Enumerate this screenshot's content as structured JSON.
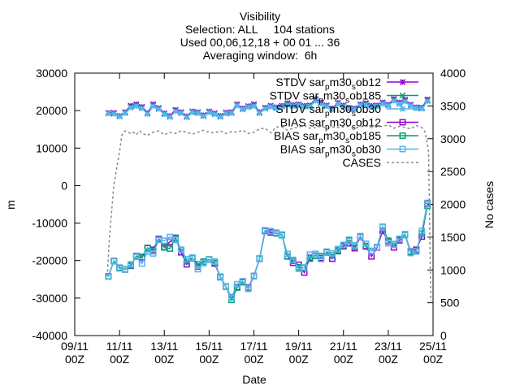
{
  "chart_data": {
    "type": "line",
    "title_lines": [
      "Visibility",
      "Selection: ALL     104 stations",
      "Used 00,06,12,18 + 00 01 ... 36",
      "Averaging window:  6h"
    ],
    "xlabel": "Date",
    "ylabel": "m",
    "y2label": "No cases",
    "xlim": [
      0,
      16
    ],
    "ylim": [
      -40000,
      30000
    ],
    "y2lim": [
      0,
      4000
    ],
    "x_ticks": [
      {
        "v": 0,
        "l1": "09/11",
        "l2": "00Z"
      },
      {
        "v": 2,
        "l1": "11/11",
        "l2": "00Z"
      },
      {
        "v": 4,
        "l1": "13/11",
        "l2": "00Z"
      },
      {
        "v": 6,
        "l1": "15/11",
        "l2": "00Z"
      },
      {
        "v": 8,
        "l1": "17/11",
        "l2": "00Z"
      },
      {
        "v": 10,
        "l1": "19/11",
        "l2": "00Z"
      },
      {
        "v": 12,
        "l1": "21/11",
        "l2": "00Z"
      },
      {
        "v": 14,
        "l1": "23/11",
        "l2": "00Z"
      },
      {
        "v": 16,
        "l1": "25/11",
        "l2": "00Z"
      }
    ],
    "y_ticks": [
      -40000,
      -30000,
      -20000,
      -10000,
      0,
      10000,
      20000,
      30000
    ],
    "y2_ticks": [
      0,
      500,
      1000,
      1500,
      2000,
      2500,
      3000,
      3500,
      4000
    ],
    "x": [
      1.5,
      1.75,
      2.0,
      2.25,
      2.5,
      2.75,
      3.0,
      3.25,
      3.5,
      3.75,
      4.0,
      4.25,
      4.5,
      4.75,
      5.0,
      5.25,
      5.5,
      5.75,
      6.0,
      6.25,
      6.5,
      6.75,
      7.0,
      7.25,
      7.5,
      7.75,
      8.0,
      8.25,
      8.5,
      8.75,
      9.0,
      9.25,
      9.5,
      9.75,
      10.0,
      10.25,
      10.5,
      10.75,
      11.0,
      11.25,
      11.5,
      11.75,
      12.0,
      12.25,
      12.5,
      12.75,
      13.0,
      13.25,
      13.5,
      13.75,
      14.0,
      14.25,
      14.5,
      14.75,
      15.0,
      15.25,
      15.5,
      15.75
    ],
    "series": [
      {
        "name": "STDV sar_{p}m30_{s}ob12",
        "legend_main": "STDV sar",
        "legend_sub1": "p",
        "legend_mid": "m30",
        "legend_sub2": "s",
        "legend_tail": "ob12",
        "axis": "y",
        "color": "#9400d3",
        "marker": "star",
        "values": [
          19400,
          19400,
          18600,
          19600,
          21300,
          21700,
          21000,
          19400,
          21700,
          20700,
          19300,
          18600,
          20200,
          19600,
          18500,
          19800,
          19600,
          18800,
          19800,
          19300,
          18600,
          19500,
          19600,
          21700,
          20600,
          21200,
          21700,
          19600,
          20800,
          21300,
          20900,
          21300,
          22000,
          21500,
          21700,
          21300,
          21400,
          23100,
          22200,
          21400,
          20600,
          22100,
          21400,
          20700,
          20600,
          21700,
          22000,
          21300,
          21400,
          22200,
          21600,
          23100,
          22200,
          22900,
          21600,
          20900,
          20800,
          23000
        ]
      },
      {
        "name": "STDV sar_{p}m30_{s}ob185",
        "legend_main": "STDV sar",
        "legend_sub1": "p",
        "legend_mid": "m30",
        "legend_sub2": "s",
        "legend_tail": "ob185",
        "axis": "y",
        "color": "#009e73",
        "marker": "cross",
        "values": [
          19300,
          19200,
          18500,
          19400,
          21000,
          21400,
          20700,
          19200,
          21400,
          20500,
          19100,
          18400,
          19900,
          19400,
          18300,
          19600,
          19400,
          18600,
          19600,
          19100,
          18400,
          19300,
          19400,
          21500,
          20400,
          21000,
          21400,
          19400,
          20600,
          21100,
          20700,
          21100,
          21700,
          21300,
          21500,
          21100,
          21200,
          22800,
          22000,
          21200,
          20400,
          21900,
          21200,
          20500,
          20400,
          21500,
          21700,
          21100,
          21200,
          22000,
          21400,
          22800,
          22000,
          22600,
          21400,
          20700,
          20600,
          22700
        ]
      },
      {
        "name": "STDV sar_{p}m30_{s}ob30",
        "legend_main": "STDV sar",
        "legend_sub1": "p",
        "legend_mid": "m30",
        "legend_sub2": "s",
        "legend_tail": "ob30",
        "axis": "y",
        "color": "#56b4e9",
        "marker": "asterisk",
        "values": [
          19200,
          19100,
          18400,
          19300,
          20800,
          21200,
          20600,
          19100,
          21200,
          20400,
          19000,
          18300,
          19800,
          19300,
          18200,
          19500,
          19300,
          18500,
          19500,
          19000,
          18300,
          19200,
          19300,
          21300,
          20300,
          20900,
          21200,
          19300,
          20500,
          21000,
          20600,
          21000,
          21500,
          21200,
          21400,
          21000,
          21100,
          22600,
          21800,
          21100,
          20300,
          21800,
          21100,
          20400,
          20300,
          21400,
          21500,
          21000,
          21100,
          21800,
          21300,
          22600,
          21800,
          22400,
          21300,
          20600,
          20500,
          22500
        ]
      },
      {
        "name": "BIAS sar_{p}m30_{s}ob12",
        "legend_main": "BIAS sar",
        "legend_sub1": "p",
        "legend_mid": "m30",
        "legend_sub2": "s",
        "legend_tail": "ob12",
        "axis": "y",
        "color": "#9400d3",
        "marker": "square",
        "values": [
          -24200,
          -20100,
          -21900,
          -22400,
          -21400,
          -18800,
          -19200,
          -16700,
          -17100,
          -14200,
          -16400,
          -15000,
          -14100,
          -17800,
          -21000,
          -19300,
          -21600,
          -20300,
          -19700,
          -20800,
          -24400,
          -27000,
          -29800,
          -27100,
          -25700,
          -27200,
          -24100,
          -19500,
          -12100,
          -12500,
          -12600,
          -13200,
          -18900,
          -20600,
          -21100,
          -23200,
          -19200,
          -18700,
          -19300,
          -17800,
          -19500,
          -17300,
          -16200,
          -15400,
          -16700,
          -13700,
          -16100,
          -18900,
          -16500,
          -12100,
          -14900,
          -16500,
          -14600,
          -13200,
          -17600,
          -17100,
          -13600,
          -4800
        ]
      },
      {
        "name": "BIAS sar_{p}m30_{s}ob185",
        "legend_main": "BIAS sar",
        "legend_sub1": "p",
        "legend_mid": "m30",
        "legend_sub2": "s",
        "legend_tail": "ob185",
        "axis": "y",
        "color": "#009e73",
        "marker": "square",
        "values": [
          -24200,
          -20100,
          -21900,
          -22300,
          -21300,
          -18800,
          -19000,
          -16600,
          -17500,
          -14400,
          -16500,
          -16800,
          -13900,
          -17200,
          -20200,
          -19400,
          -21000,
          -20300,
          -19700,
          -20600,
          -24300,
          -26900,
          -30500,
          -27200,
          -25800,
          -27500,
          -24200,
          -19500,
          -12000,
          -12200,
          -12800,
          -13100,
          -18900,
          -20100,
          -21800,
          -21900,
          -19500,
          -18700,
          -18800,
          -17700,
          -18600,
          -17500,
          -15900,
          -14500,
          -16300,
          -13500,
          -16300,
          -17400,
          -16400,
          -11000,
          -14700,
          -15600,
          -14200,
          -13000,
          -17700,
          -17500,
          -12800,
          -5400
        ]
      },
      {
        "name": "BIAS sar_{p}m30_{s}ob30",
        "legend_main": "BIAS sar",
        "legend_sub1": "p",
        "legend_mid": "m30",
        "legend_sub2": "s",
        "legend_tail": "ob30",
        "axis": "y",
        "color": "#56b4e9",
        "marker": "square",
        "values": [
          -24300,
          -20200,
          -22100,
          -22400,
          -21000,
          -19000,
          -20800,
          -17600,
          -18100,
          -14500,
          -14700,
          -13700,
          -14500,
          -17100,
          -19600,
          -19200,
          -22300,
          -20700,
          -19800,
          -20200,
          -24500,
          -27000,
          -29900,
          -26300,
          -25500,
          -27400,
          -24200,
          -19400,
          -11900,
          -12200,
          -12700,
          -13300,
          -18200,
          -19800,
          -22200,
          -21800,
          -18400,
          -18200,
          -19600,
          -17600,
          -18100,
          -16900,
          -15800,
          -14800,
          -15900,
          -13600,
          -15500,
          -17500,
          -16400,
          -11100,
          -15400,
          -15700,
          -14300,
          -13200,
          -18000,
          -17600,
          -12100,
          -4600
        ]
      },
      {
        "name": "CASES",
        "legend_main": "CASES",
        "legend_sub1": "",
        "legend_mid": "",
        "legend_sub2": "",
        "legend_tail": "",
        "axis": "y2",
        "color": "#888888",
        "marker": "none",
        "x": [
          1.45,
          1.55,
          1.75,
          2.0,
          2.1,
          2.25,
          2.5,
          2.6,
          2.75,
          2.9,
          3.0,
          3.25,
          3.5,
          3.75,
          4.0,
          4.25,
          4.5,
          4.75,
          5.0,
          5.25,
          5.5,
          5.75,
          6.0,
          6.25,
          6.5,
          6.75,
          7.0,
          7.25,
          7.5,
          7.75,
          8.0,
          8.25,
          8.5,
          8.75,
          9.0,
          9.25,
          9.5,
          9.75,
          10.0,
          10.25,
          10.5,
          10.75,
          11.0,
          11.25,
          11.5,
          11.75,
          12.0,
          12.25,
          12.5,
          12.75,
          13.0,
          13.25,
          13.5,
          13.75,
          14.0,
          14.25,
          14.5,
          14.75,
          15.0,
          15.25,
          15.5,
          15.65,
          15.8,
          15.9
        ],
        "values": [
          900,
          1500,
          2300,
          2800,
          3050,
          3120,
          3080,
          3100,
          3060,
          3120,
          3080,
          3050,
          3100,
          3120,
          3060,
          3100,
          3080,
          3120,
          3100,
          3070,
          3100,
          3130,
          3100,
          3090,
          3120,
          3080,
          3110,
          3100,
          3130,
          3080,
          3100,
          3150,
          3160,
          3090,
          3180,
          3180,
          3130,
          3160,
          3180,
          3200,
          3160,
          3170,
          3190,
          3160,
          3180,
          3170,
          3180,
          3190,
          3160,
          3180,
          3200,
          3170,
          3180,
          3190,
          3210,
          3160,
          3190,
          3170,
          3150,
          3200,
          3170,
          3100,
          2800,
          520
        ]
      }
    ],
    "legend_position": "top-right",
    "grid": false
  }
}
